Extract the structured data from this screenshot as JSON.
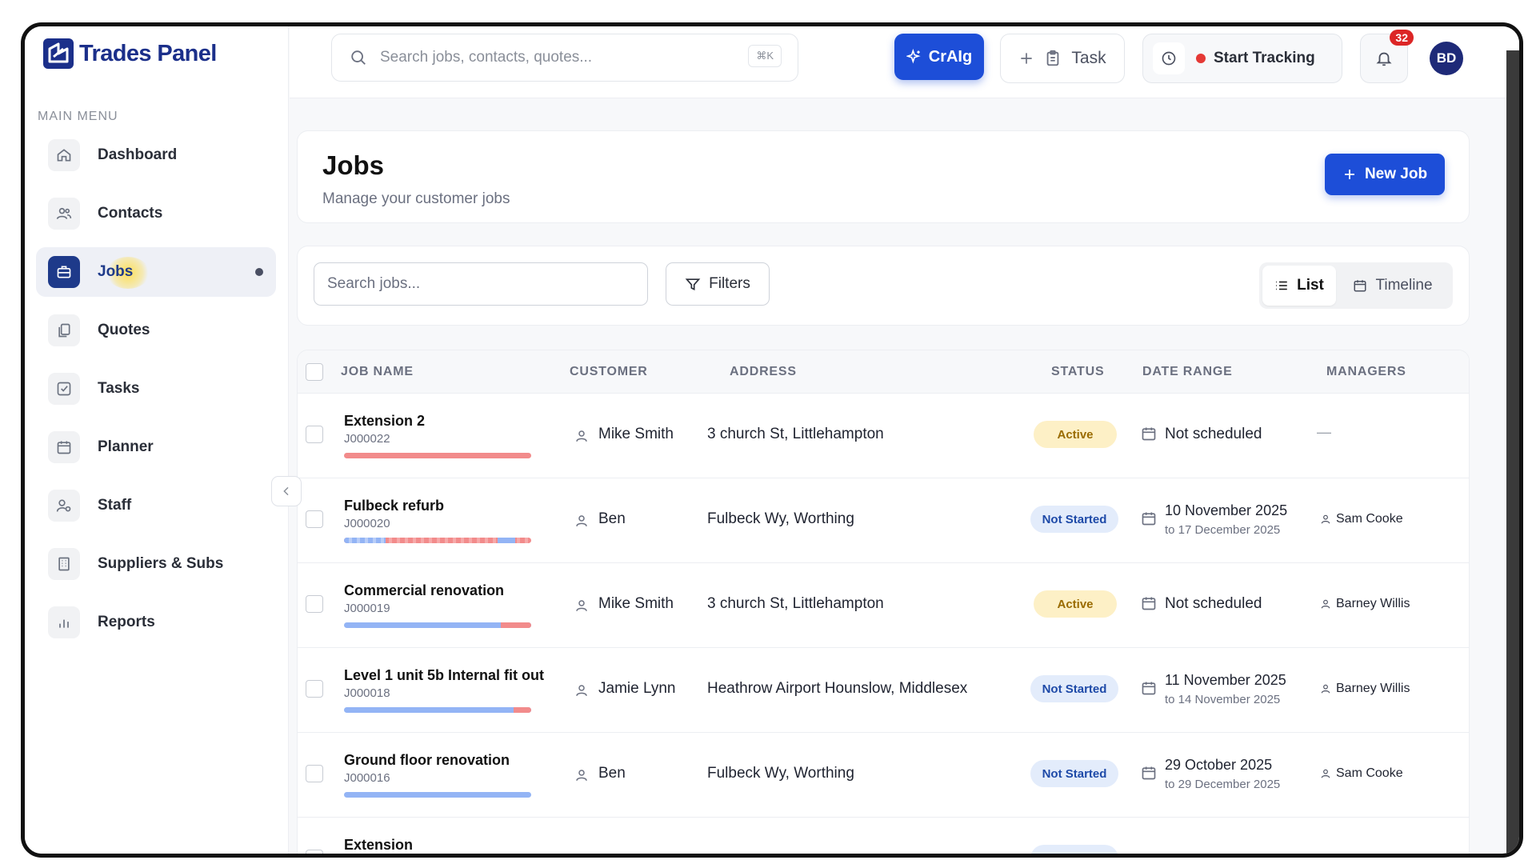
{
  "app": {
    "brand": "Trades Panel"
  },
  "sidebar": {
    "heading": "MAIN MENU",
    "items": [
      {
        "label": "Dashboard",
        "icon": "home-icon"
      },
      {
        "label": "Contacts",
        "icon": "users-icon"
      },
      {
        "label": "Jobs",
        "icon": "briefcase-icon",
        "active": true
      },
      {
        "label": "Quotes",
        "icon": "documents-icon"
      },
      {
        "label": "Tasks",
        "icon": "check-square-icon"
      },
      {
        "label": "Planner",
        "icon": "calendar-icon"
      },
      {
        "label": "Staff",
        "icon": "user-cog-icon"
      },
      {
        "label": "Suppliers & Subs",
        "icon": "building-icon"
      },
      {
        "label": "Reports",
        "icon": "bar-chart-icon"
      }
    ]
  },
  "topbar": {
    "search_placeholder": "Search jobs, contacts, quotes...",
    "search_shortcut": "⌘K",
    "craig_label": "CrAIg",
    "task_label": "Task",
    "tracking_label": "Start Tracking",
    "notification_count": "32",
    "avatar_initials": "BD"
  },
  "page": {
    "title": "Jobs",
    "subtitle": "Manage your customer jobs",
    "new_job_label": "New Job"
  },
  "toolbar": {
    "search_placeholder": "Search jobs...",
    "filters_label": "Filters",
    "view_list": "List",
    "view_timeline": "Timeline"
  },
  "table": {
    "columns": [
      "JOB NAME",
      "CUSTOMER",
      "ADDRESS",
      "STATUS",
      "DATE RANGE",
      "MANAGERS"
    ],
    "rows": [
      {
        "name": "Extension 2",
        "id": "J000022",
        "customer": "Mike Smith",
        "address": "3 church St, Littlehampton",
        "status": "Active",
        "date_main": "Not scheduled",
        "date_sub": "",
        "manager": "—"
      },
      {
        "name": "Fulbeck refurb",
        "id": "J000020",
        "customer": "Ben",
        "address": "Fulbeck Wy, Worthing",
        "status": "Not Started",
        "date_main": "10 November 2025",
        "date_sub": "to 17 December 2025",
        "manager": "Sam Cooke"
      },
      {
        "name": "Commercial renovation",
        "id": "J000019",
        "customer": "Mike Smith",
        "address": "3 church St, Littlehampton",
        "status": "Active",
        "date_main": "Not scheduled",
        "date_sub": "",
        "manager": "Barney Willis"
      },
      {
        "name": "Level 1 unit 5b Internal fit out",
        "id": "J000018",
        "customer": "Jamie Lynn",
        "address": "Heathrow Airport Hounslow, Middlesex",
        "status": "Not Started",
        "date_main": "11 November 2025",
        "date_sub": "to 14 November 2025",
        "manager": "Barney Willis"
      },
      {
        "name": "Ground floor renovation",
        "id": "J000016",
        "customer": "Ben",
        "address": "Fulbeck Wy, Worthing",
        "status": "Not Started",
        "date_main": "29 October 2025",
        "date_sub": "to 29 December 2025",
        "manager": "Sam Cooke"
      },
      {
        "name": "Extension",
        "id": "",
        "customer": "",
        "address": "",
        "status": "",
        "date_main": "",
        "date_sub": "",
        "manager": ""
      }
    ]
  },
  "colors": {
    "accent": "#1d4ed8",
    "brand": "#1b2f8a",
    "active_bg": "#fdf0c6",
    "not_started_bg": "#e3ecfb",
    "danger": "#dc2626"
  }
}
